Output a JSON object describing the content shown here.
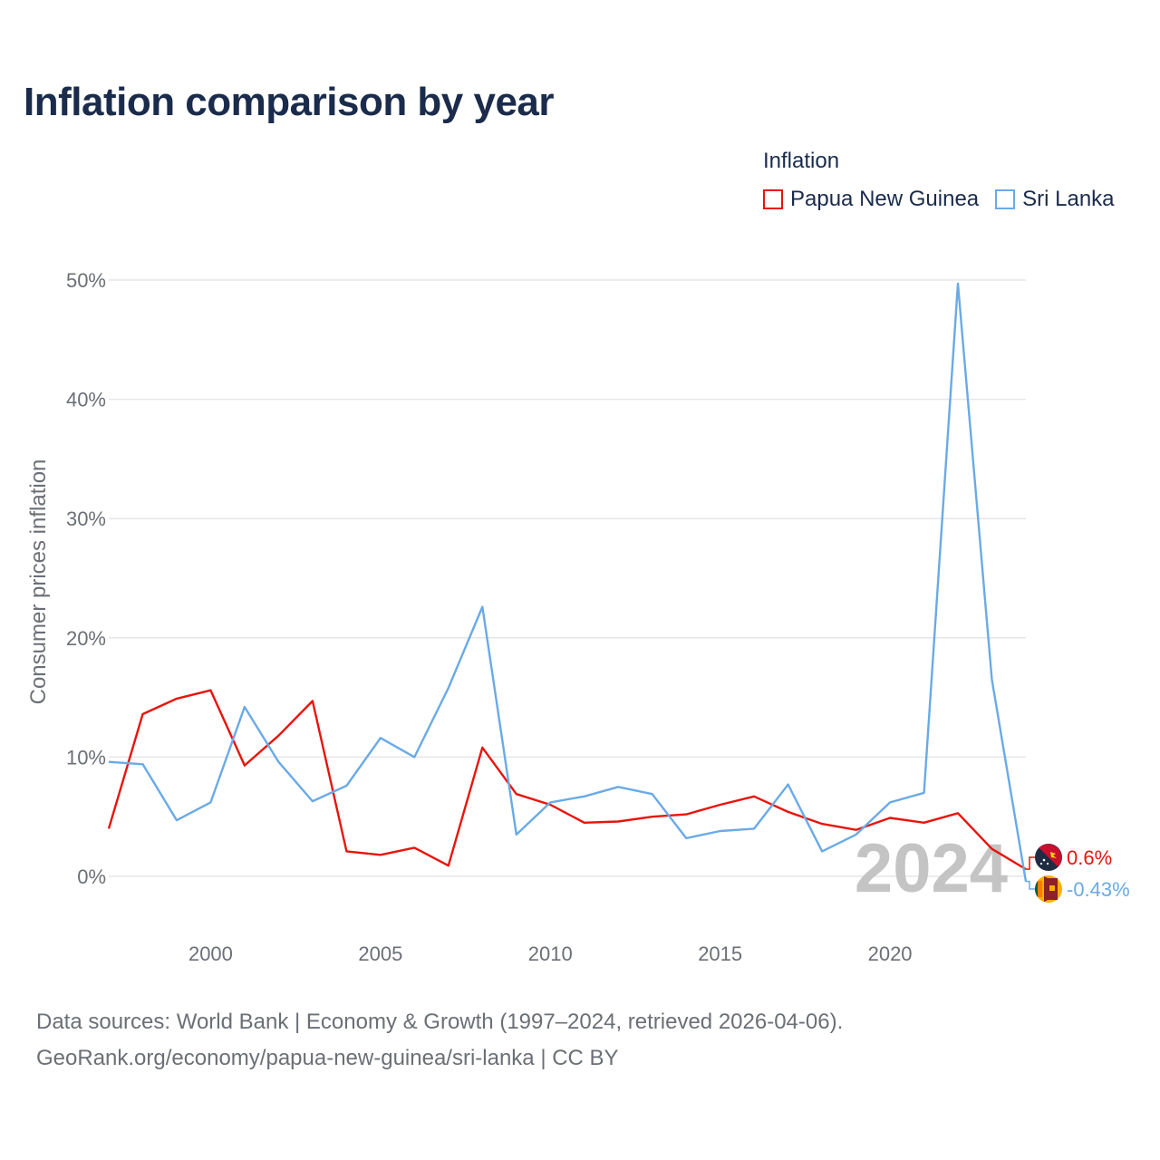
{
  "title": "Inflation comparison by year",
  "legend_title": "Inflation",
  "footer": {
    "line1": "Data sources: World Bank | Economy & Growth (1997–2024, retrieved 2026-04-06).",
    "line2": "GeoRank.org/economy/papua-new-guinea/sri-lanka | CC BY"
  },
  "colors": {
    "png": "#e8140c",
    "lk": "#6aaae6",
    "grid": "#e6e6e6",
    "year": "#c4c4c4"
  },
  "chart_data": {
    "type": "line",
    "title": "Inflation comparison by year",
    "xlabel": "",
    "ylabel": "Consumer prices inflation",
    "xlim": [
      1997,
      2024
    ],
    "ylim": [
      -5,
      52
    ],
    "y_ticks": [
      0,
      10,
      20,
      30,
      40,
      50
    ],
    "y_tick_labels": [
      "0%",
      "10%",
      "20%",
      "30%",
      "40%",
      "50%"
    ],
    "x_ticks": [
      2000,
      2005,
      2010,
      2015,
      2020
    ],
    "x_tick_labels": [
      "2000",
      "2005",
      "2010",
      "2015",
      "2020"
    ],
    "current_year_label": "2024",
    "x": [
      1997,
      1998,
      1999,
      2000,
      2001,
      2002,
      2003,
      2004,
      2005,
      2006,
      2007,
      2008,
      2009,
      2010,
      2011,
      2012,
      2013,
      2014,
      2015,
      2016,
      2017,
      2018,
      2019,
      2020,
      2021,
      2022,
      2023,
      2024
    ],
    "series": [
      {
        "name": "Papua New Guinea",
        "color": "#e8140c",
        "end_label": "0.6%",
        "values": [
          4.0,
          13.6,
          14.9,
          15.6,
          9.3,
          11.8,
          14.7,
          2.1,
          1.8,
          2.4,
          0.9,
          10.8,
          6.9,
          6.0,
          4.5,
          4.6,
          5.0,
          5.2,
          6.0,
          6.7,
          5.4,
          4.4,
          3.9,
          4.9,
          4.5,
          5.3,
          2.3,
          0.6
        ]
      },
      {
        "name": "Sri Lanka",
        "color": "#6aaae6",
        "end_label": "-0.43%",
        "values": [
          9.6,
          9.4,
          4.7,
          6.2,
          14.2,
          9.6,
          6.3,
          7.6,
          11.6,
          10.0,
          15.8,
          22.6,
          3.5,
          6.2,
          6.7,
          7.5,
          6.9,
          3.2,
          3.8,
          4.0,
          7.7,
          2.1,
          3.5,
          6.2,
          7.0,
          49.7,
          16.5,
          -0.43
        ]
      }
    ],
    "legend_position": "top-right",
    "grid": true
  }
}
